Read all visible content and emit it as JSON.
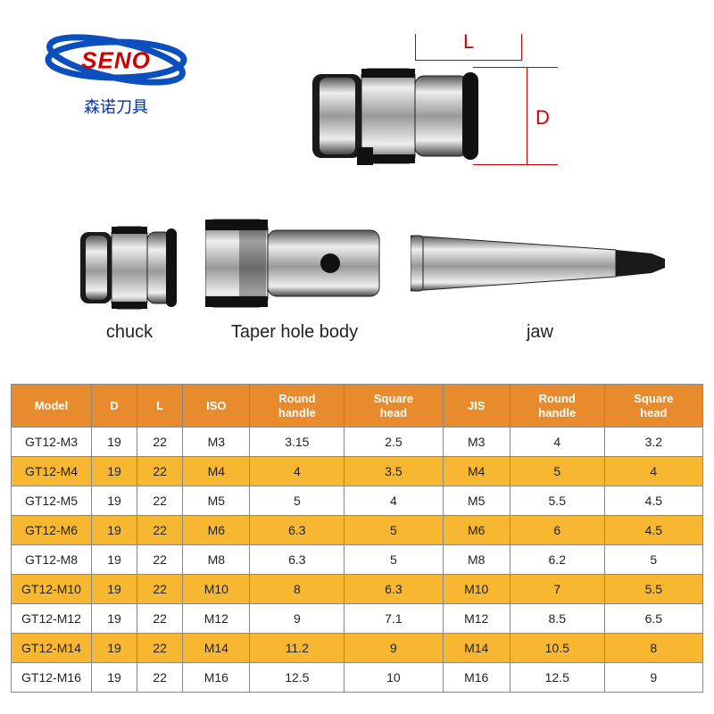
{
  "logo": {
    "brand": "SENO",
    "subtitle": "森诺刀具",
    "ellipse_stroke": "#0b4fbf",
    "brand_color": "#d00000",
    "subtitle_color": "#0033aa"
  },
  "diagram": {
    "dim_L_label": "L",
    "dim_D_label": "D",
    "dim_color": "#cc0000"
  },
  "parts": {
    "chuck_label": "chuck",
    "body_label": "Taper hole body",
    "jaw_label": "jaw"
  },
  "table": {
    "header_bg": "#e88b2d",
    "header_fg": "#ffffff",
    "alt_row_bg": "#f7b731",
    "row_bg": "#ffffff",
    "border_color": "#888888",
    "columns": [
      "Model",
      "D",
      "L",
      "ISO",
      "Round handle",
      "Square head",
      "JIS",
      "Round handle",
      "Square head"
    ],
    "rows": [
      [
        "GT12-M3",
        "19",
        "22",
        "M3",
        "3.15",
        "2.5",
        "M3",
        "4",
        "3.2"
      ],
      [
        "GT12-M4",
        "19",
        "22",
        "M4",
        "4",
        "3.5",
        "M4",
        "5",
        "4"
      ],
      [
        "GT12-M5",
        "19",
        "22",
        "M5",
        "5",
        "4",
        "M5",
        "5.5",
        "4.5"
      ],
      [
        "GT12-M6",
        "19",
        "22",
        "M6",
        "6.3",
        "5",
        "M6",
        "6",
        "4.5"
      ],
      [
        "GT12-M8",
        "19",
        "22",
        "M8",
        "6.3",
        "5",
        "M8",
        "6.2",
        "5"
      ],
      [
        "GT12-M10",
        "19",
        "22",
        "M10",
        "8",
        "6.3",
        "M10",
        "7",
        "5.5"
      ],
      [
        "GT12-M12",
        "19",
        "22",
        "M12",
        "9",
        "7.1",
        "M12",
        "8.5",
        "6.5"
      ],
      [
        "GT12-M14",
        "19",
        "22",
        "M14",
        "11.2",
        "9",
        "M14",
        "10.5",
        "8"
      ],
      [
        "GT12-M16",
        "19",
        "22",
        "M16",
        "12.5",
        "10",
        "M16",
        "12.5",
        "9"
      ]
    ]
  }
}
